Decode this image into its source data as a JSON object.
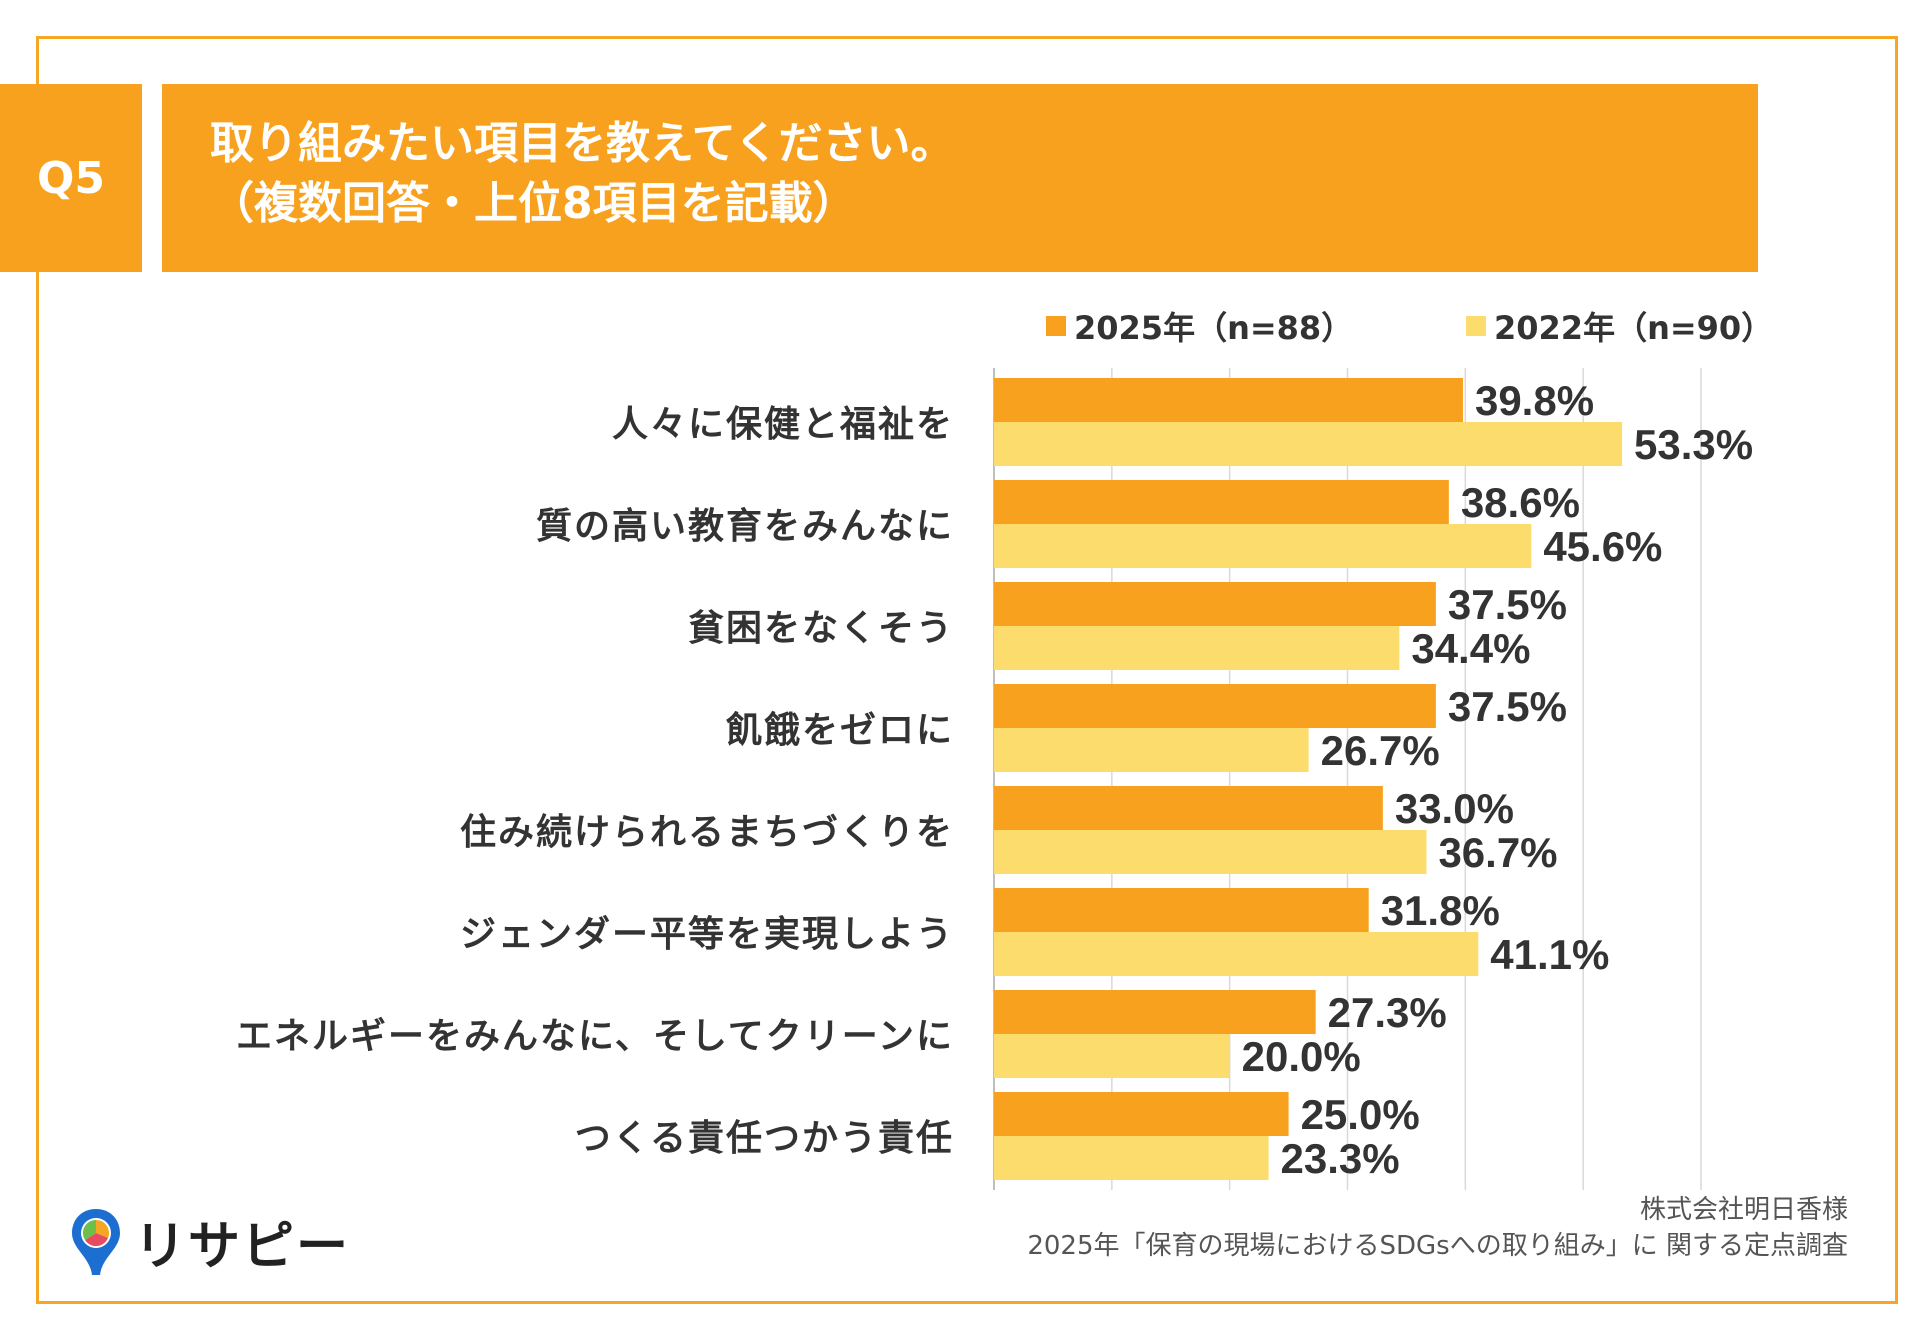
{
  "header": {
    "badge": "Q5",
    "title_line1": "取り組みたい項目を教えてください。",
    "title_line2": "（複数回答・上位8項目を記載）"
  },
  "colors": {
    "accent": "#f8a11e",
    "series_2025": "#f8a11e",
    "series_2022": "#fddc6e",
    "frame": "#f5a623"
  },
  "chart_data": {
    "type": "bar",
    "orientation": "horizontal",
    "categories": [
      "人々に保健と福祉を",
      "質の高い教育をみんなに",
      "貧困をなくそう",
      "飢餓をゼロに",
      "住み続けられるまちづくりを",
      "ジェンダー平等を実現しよう",
      "エネルギーをみんなに、そしてクリーンに",
      "つくる責任つかう責任"
    ],
    "series": [
      {
        "name": "2025年（n=88）",
        "values": [
          39.8,
          38.6,
          37.5,
          37.5,
          33.0,
          31.8,
          27.3,
          25.0
        ]
      },
      {
        "name": "2022年（n=90）",
        "values": [
          53.3,
          45.6,
          34.4,
          26.7,
          36.7,
          41.1,
          20.0,
          23.3
        ]
      }
    ],
    "value_suffix": "%",
    "xlim": [
      0,
      60
    ],
    "grid": true,
    "legend": "top-right"
  },
  "source": {
    "line1": "株式会社明日香様",
    "line2": "2025年「保育の現場におけるSDGsへの取り組み」に 関する定点調査"
  },
  "logo": {
    "text": "リサピー",
    "icon": "map-pin-icon"
  }
}
